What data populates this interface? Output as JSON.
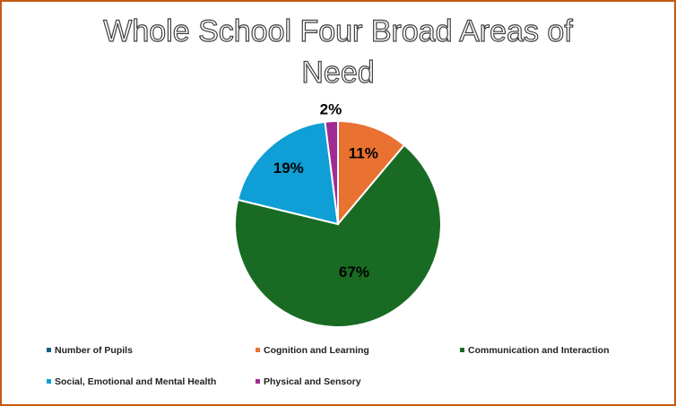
{
  "chart_data": {
    "type": "pie",
    "title": "Whole School Four Broad Areas of Need",
    "categories": [
      "Number of Pupils",
      "Cognition and Learning",
      "Communication and Interaction",
      "Social, Emotional and Mental Health",
      "Physical and Sensory"
    ],
    "values": [
      0,
      11,
      67,
      19,
      2
    ],
    "value_labels": [
      null,
      "11%",
      "67%",
      "19%",
      "2%"
    ],
    "colors": [
      "#156082",
      "#e97132",
      "#196b24",
      "#0f9ed5",
      "#a02b93"
    ],
    "legend": "bottom"
  }
}
